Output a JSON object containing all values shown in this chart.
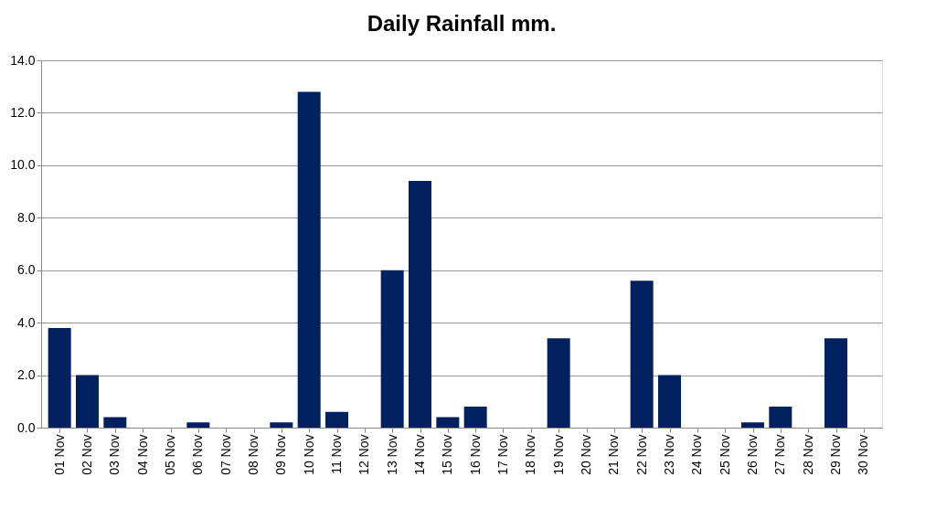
{
  "chart_data": {
    "type": "bar",
    "title": "Daily Rainfall mm.",
    "categories": [
      "01 Nov",
      "02 Nov",
      "03 Nov",
      "04 Nov",
      "05 Nov",
      "06 Nov",
      "07 Nov",
      "08 Nov",
      "09 Nov",
      "10 Nov",
      "11 Nov",
      "12 Nov",
      "13 Nov",
      "14 Nov",
      "15 Nov",
      "16 Nov",
      "17 Nov",
      "18 Nov",
      "19 Nov",
      "20 Nov",
      "21 Nov",
      "22 Nov",
      "23 Nov",
      "24 Nov",
      "25 Nov",
      "26 Nov",
      "27 Nov",
      "28 Nov",
      "29 Nov",
      "30 Nov"
    ],
    "values": [
      3.8,
      2.0,
      0.4,
      0,
      0,
      0.2,
      0,
      0,
      0.2,
      12.8,
      0.6,
      0,
      6.0,
      9.4,
      0.4,
      0.8,
      0,
      0,
      3.4,
      0,
      0,
      5.6,
      2.0,
      0,
      0,
      0.2,
      0.8,
      0,
      3.4,
      0
    ],
    "color": "#002060",
    "ylim": [
      0,
      14
    ],
    "yticks": [
      {
        "value": 0,
        "label": "0.0"
      },
      {
        "value": 2,
        "label": "2.0"
      },
      {
        "value": 4,
        "label": "4.0"
      },
      {
        "value": 6,
        "label": "6.0"
      },
      {
        "value": 8,
        "label": "8.0"
      },
      {
        "value": 10,
        "label": "10.0"
      },
      {
        "value": 12,
        "label": "12.0"
      },
      {
        "value": 14,
        "label": "14.0"
      }
    ],
    "grid": "y"
  }
}
